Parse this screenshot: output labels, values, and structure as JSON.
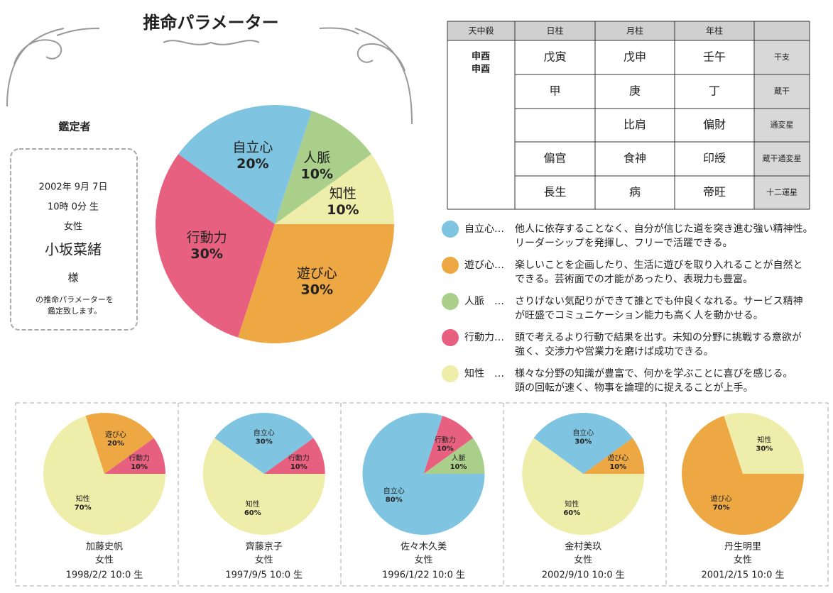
{
  "chart_data": [
    {
      "type": "pie",
      "title": "推命パラメーター",
      "categories": [
        "知性",
        "人脈",
        "自立心",
        "行動力",
        "遊び心"
      ],
      "values": [
        10,
        10,
        20,
        30,
        30
      ],
      "value_labels": [
        "10%",
        "10%",
        "20%",
        "30%",
        "30%"
      ],
      "colors": [
        "#eeeeaa",
        "#a9cf8a",
        "#7fc4e0",
        "#e8607f",
        "#eda844"
      ]
    },
    {
      "type": "pie",
      "name": "加藤史帆",
      "gender": "女性",
      "birth": "1998/2/2 10:0 生",
      "categories": [
        "行動力",
        "遊び心",
        "知性"
      ],
      "values": [
        10,
        20,
        70
      ],
      "value_labels": [
        "10%",
        "20%",
        "70%"
      ],
      "colors": [
        "#e8607f",
        "#eda844",
        "#eeeeaa"
      ]
    },
    {
      "type": "pie",
      "name": "齊藤京子",
      "gender": "女性",
      "birth": "1997/9/5 10:0 生",
      "categories": [
        "行動力",
        "自立心",
        "知性"
      ],
      "values": [
        10,
        30,
        60
      ],
      "value_labels": [
        "10%",
        "30%",
        "60%"
      ],
      "colors": [
        "#e8607f",
        "#7fc4e0",
        "#eeeeaa"
      ]
    },
    {
      "type": "pie",
      "name": "佐々木久美",
      "gender": "女性",
      "birth": "1996/1/22 10:0 生",
      "categories": [
        "人脈",
        "行動力",
        "自立心"
      ],
      "values": [
        10,
        10,
        80
      ],
      "value_labels": [
        "10%",
        "10%",
        "80%"
      ],
      "colors": [
        "#a9cf8a",
        "#e8607f",
        "#7fc4e0"
      ]
    },
    {
      "type": "pie",
      "name": "金村美玖",
      "gender": "女性",
      "birth": "2002/9/10 10:0 生",
      "categories": [
        "遊び心",
        "自立心",
        "知性"
      ],
      "values": [
        10,
        30,
        60
      ],
      "value_labels": [
        "10%",
        "30%",
        "60%"
      ],
      "colors": [
        "#eda844",
        "#7fc4e0",
        "#eeeeaa"
      ]
    },
    {
      "type": "pie",
      "name": "丹生明里",
      "gender": "女性",
      "birth": "2001/2/15 10:0 生",
      "categories": [
        "知性",
        "遊び心"
      ],
      "values": [
        30,
        70
      ],
      "value_labels": [
        "30%",
        "70%"
      ],
      "colors": [
        "#eeeeaa",
        "#eda844"
      ]
    }
  ],
  "profile": {
    "heading": "鑑定者",
    "date": "2002年 9月 7日",
    "time": "10時 0分 生",
    "gender": "女性",
    "name": "小坂菜緒",
    "honorific": "様",
    "note": [
      "の推命パラメーターを",
      "鑑定致します。"
    ]
  },
  "table": {
    "header": [
      "天中殺",
      "日柱",
      "月柱",
      "年柱"
    ],
    "tenchusatsu": [
      "申酉",
      "申酉"
    ],
    "rows": [
      [
        "戊寅",
        "戊申",
        "壬午",
        "干支"
      ],
      [
        "甲",
        "庚",
        "丁",
        "蔵干"
      ],
      [
        null,
        "比肩",
        "偏財",
        "通変星"
      ],
      [
        "偏官",
        "食神",
        "印綬",
        "蔵干通変星"
      ],
      [
        "長生",
        "病",
        "帝旺",
        "十二運星"
      ]
    ]
  },
  "legend": [
    {
      "label": "自立心…",
      "color": "#7fc4e0",
      "text": [
        "他人に依存することなく、自分が信じた道を突き進む強い精神性。",
        "リーダーシップを発揮し、フリーで活躍できる。"
      ]
    },
    {
      "label": "遊び心…",
      "color": "#eda844",
      "text": [
        "楽しいことを企画したり、生活に遊びを取り入れることが自然と",
        "できる。芸術面での才能があったり、表現力も豊富。"
      ]
    },
    {
      "label": "人脈　…",
      "color": "#a9cf8a",
      "text": [
        "さりげない気配りができて誰とでも仲良くなれる。サービス精神",
        "が旺盛でコミュニケーション能力も高く人を動かせる。"
      ]
    },
    {
      "label": "行動力…",
      "color": "#e8607f",
      "text": [
        "頭で考えるより行動で結果を出す。未知の分野に挑戦する意欲が",
        "強く、交渉力や営業力を磨けば成功できる。"
      ]
    },
    {
      "label": "知性　…",
      "color": "#eeeeaa",
      "text": [
        "様々な分野の知識が豊富で、何かを学ぶことに喜びを感じる。",
        "頭の回転が速く、物事を論理的に捉えることが上手。"
      ]
    }
  ]
}
